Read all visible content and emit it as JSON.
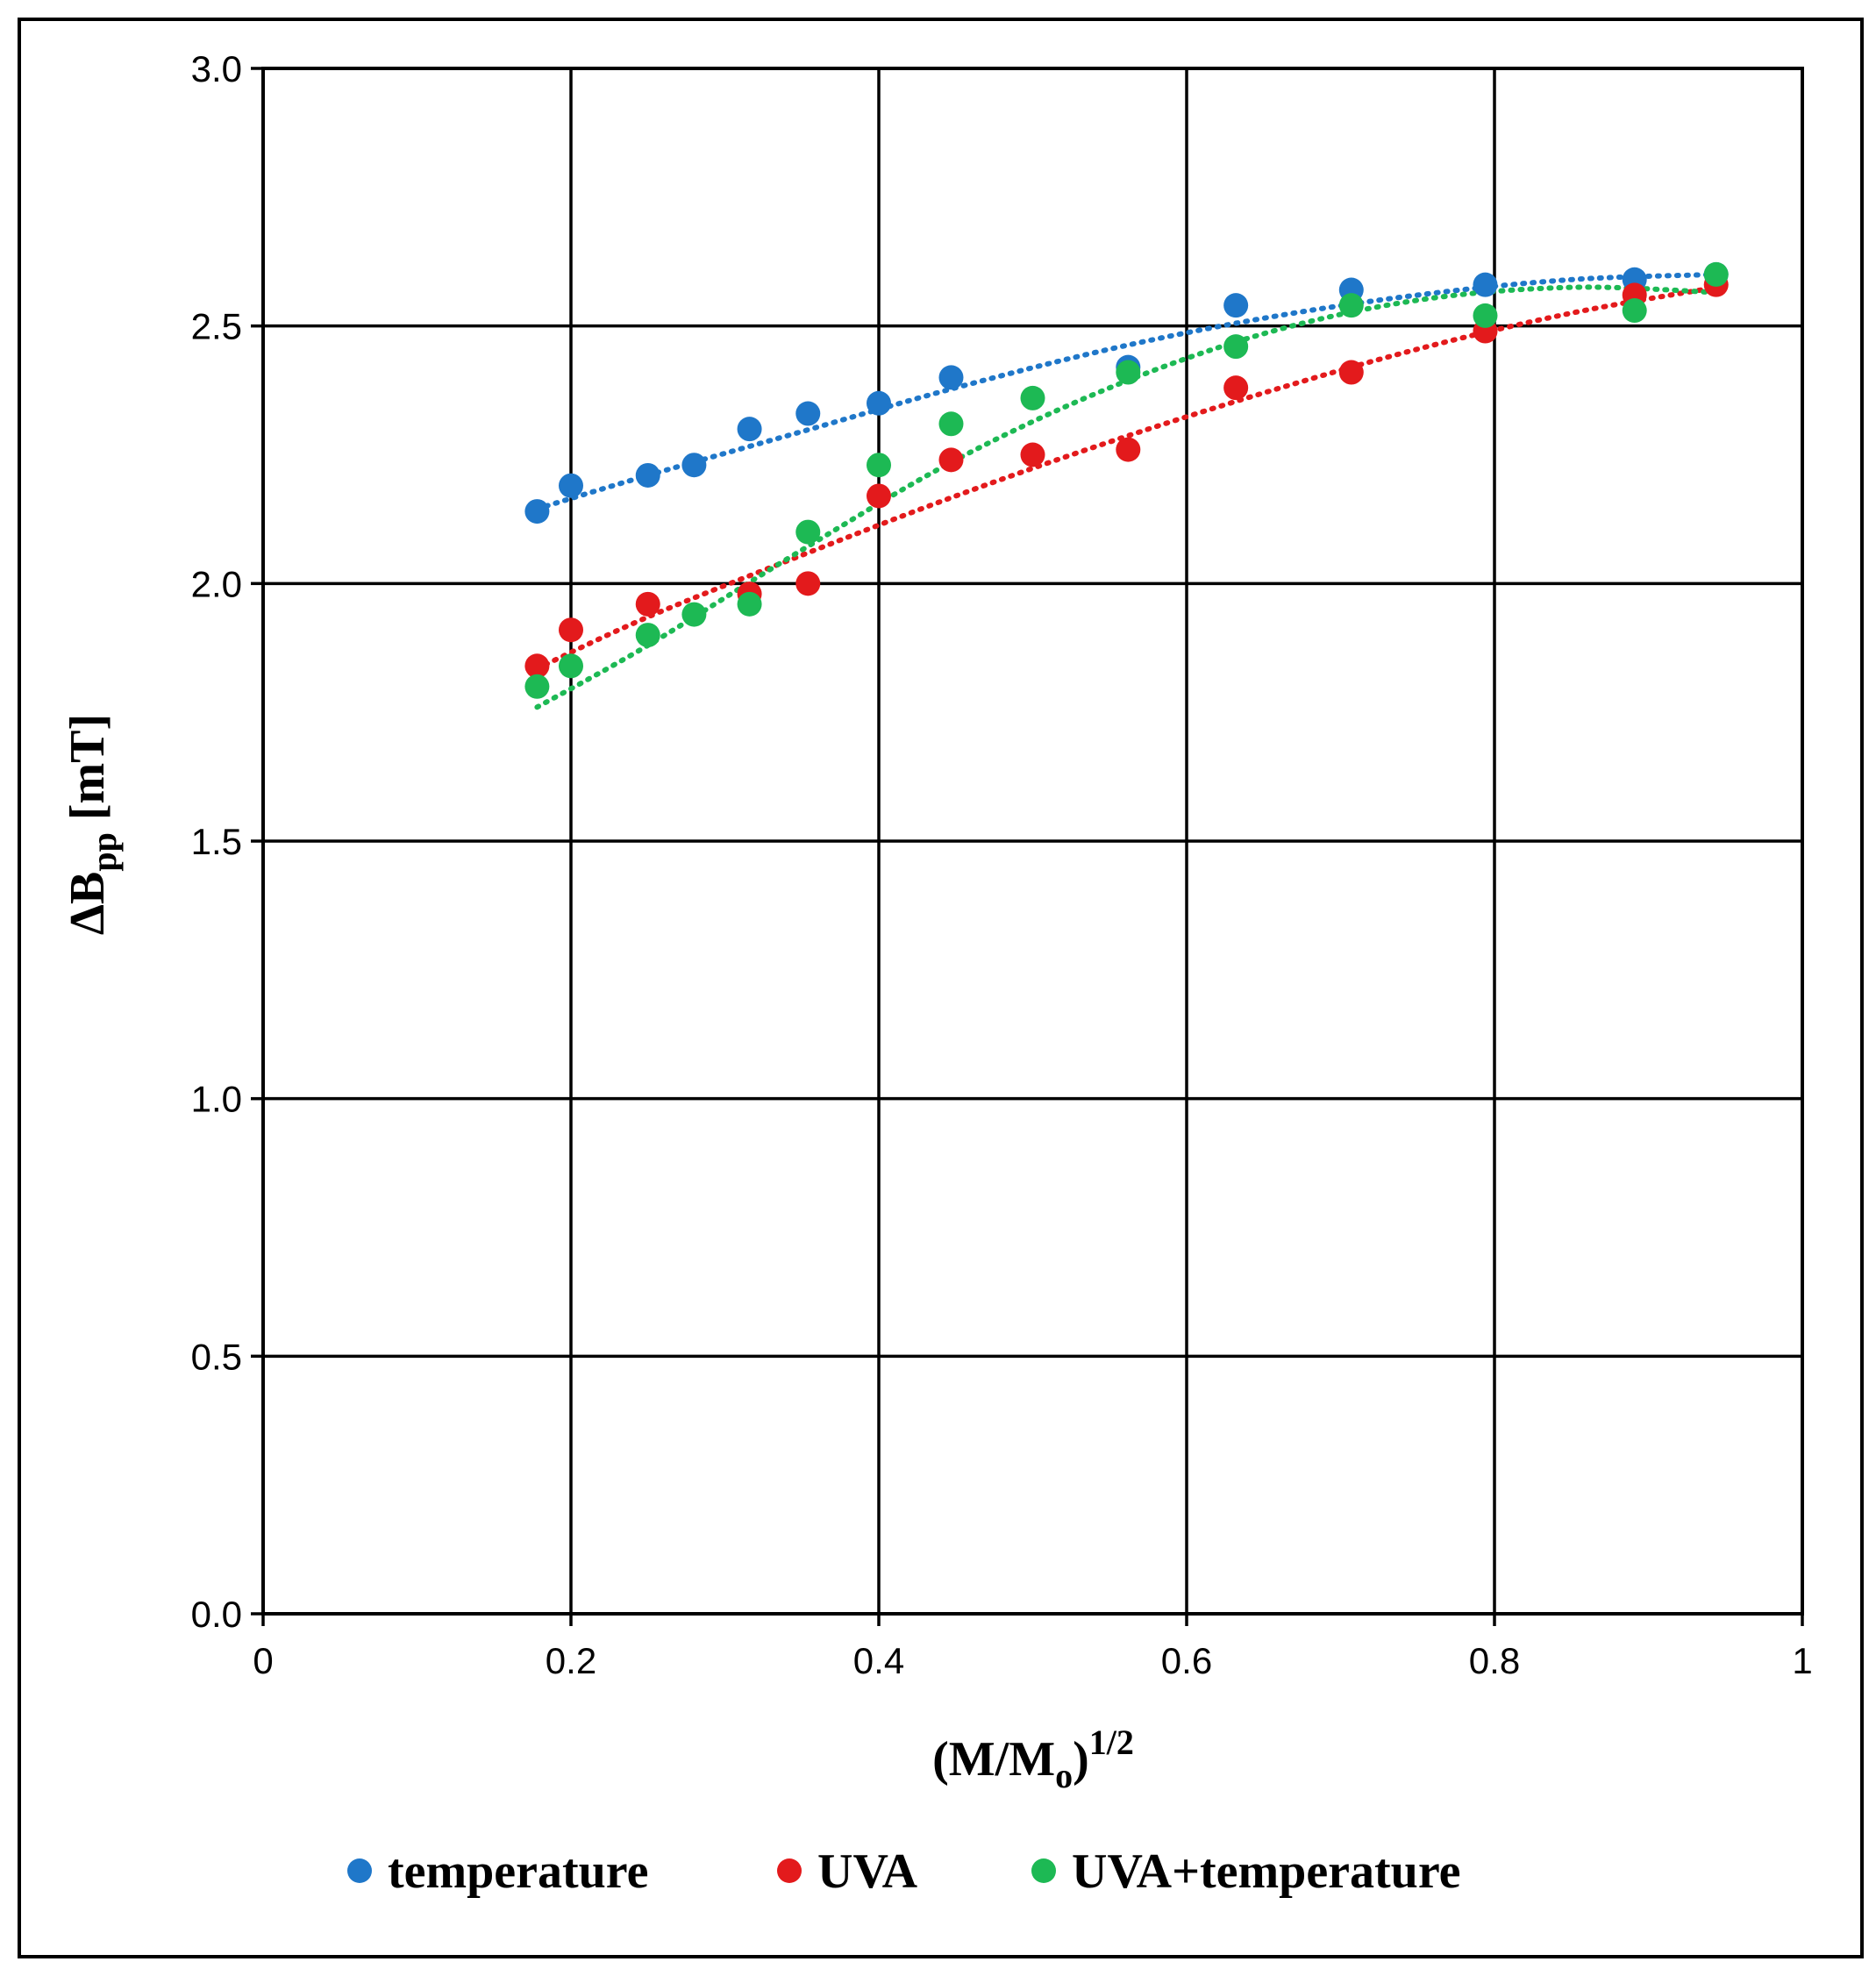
{
  "chart_data": {
    "type": "scatter",
    "title": "",
    "xlabel": "(M/Mo)1/2",
    "xlabel_parts": {
      "main": "(M/M",
      "sub": "o",
      "close": ")",
      "sup": "1/2"
    },
    "ylabel": "ΔBpp [mT]",
    "ylabel_parts": {
      "main": "ΔB",
      "sub": "pp",
      "unit": " [mT]"
    },
    "xlim": [
      0,
      1
    ],
    "ylim": [
      0,
      3
    ],
    "x_ticks": [
      0,
      0.2,
      0.4,
      0.6,
      0.8,
      1
    ],
    "x_tick_labels": [
      "0",
      "0.2",
      "0.4",
      "0.6",
      "0.8",
      "1"
    ],
    "y_ticks": [
      0,
      0.5,
      1,
      1.5,
      2,
      2.5,
      3
    ],
    "y_tick_labels": [
      "0.0",
      "0.5",
      "1.0",
      "1.5",
      "2.0",
      "2.5",
      "3.0"
    ],
    "grid": true,
    "legend_position": "bottom",
    "series": [
      {
        "name": "temperature",
        "color": "#1f77c9",
        "x": [
          0.178,
          0.2,
          0.25,
          0.28,
          0.316,
          0.354,
          0.4,
          0.447,
          0.562,
          0.632,
          0.707,
          0.794,
          0.891,
          0.944
        ],
        "y": [
          2.14,
          2.19,
          2.21,
          2.23,
          2.3,
          2.33,
          2.35,
          2.4,
          2.42,
          2.54,
          2.57,
          2.58,
          2.59,
          2.6
        ],
        "trend": [
          [
            0.178,
            2.145
          ],
          [
            0.25,
            2.21
          ],
          [
            0.35,
            2.295
          ],
          [
            0.45,
            2.38
          ],
          [
            0.55,
            2.455
          ],
          [
            0.65,
            2.515
          ],
          [
            0.75,
            2.56
          ],
          [
            0.85,
            2.59
          ],
          [
            0.944,
            2.6
          ]
        ]
      },
      {
        "name": "UVA",
        "color": "#e31a1c",
        "x": [
          0.178,
          0.2,
          0.25,
          0.316,
          0.354,
          0.4,
          0.447,
          0.5,
          0.562,
          0.632,
          0.707,
          0.794,
          0.891,
          0.944
        ],
        "y": [
          1.84,
          1.91,
          1.96,
          1.98,
          2.0,
          2.17,
          2.24,
          2.25,
          2.26,
          2.38,
          2.41,
          2.49,
          2.56,
          2.58
        ],
        "trend": [
          [
            0.178,
            1.835
          ],
          [
            0.25,
            1.935
          ],
          [
            0.35,
            2.055
          ],
          [
            0.45,
            2.17
          ],
          [
            0.55,
            2.275
          ],
          [
            0.65,
            2.37
          ],
          [
            0.75,
            2.455
          ],
          [
            0.85,
            2.525
          ],
          [
            0.944,
            2.575
          ]
        ]
      },
      {
        "name": "UVA+temperature",
        "color": "#1db954",
        "x": [
          0.178,
          0.2,
          0.25,
          0.28,
          0.316,
          0.354,
          0.4,
          0.447,
          0.5,
          0.562,
          0.632,
          0.707,
          0.794,
          0.891,
          0.944
        ],
        "y": [
          1.8,
          1.84,
          1.9,
          1.94,
          1.96,
          2.1,
          2.23,
          2.31,
          2.36,
          2.41,
          2.46,
          2.54,
          2.52,
          2.53,
          2.6
        ],
        "trend": [
          [
            0.178,
            1.76
          ],
          [
            0.25,
            1.88
          ],
          [
            0.35,
            2.065
          ],
          [
            0.45,
            2.24
          ],
          [
            0.55,
            2.38
          ],
          [
            0.65,
            2.485
          ],
          [
            0.75,
            2.55
          ],
          [
            0.85,
            2.575
          ],
          [
            0.944,
            2.565
          ]
        ]
      }
    ]
  }
}
